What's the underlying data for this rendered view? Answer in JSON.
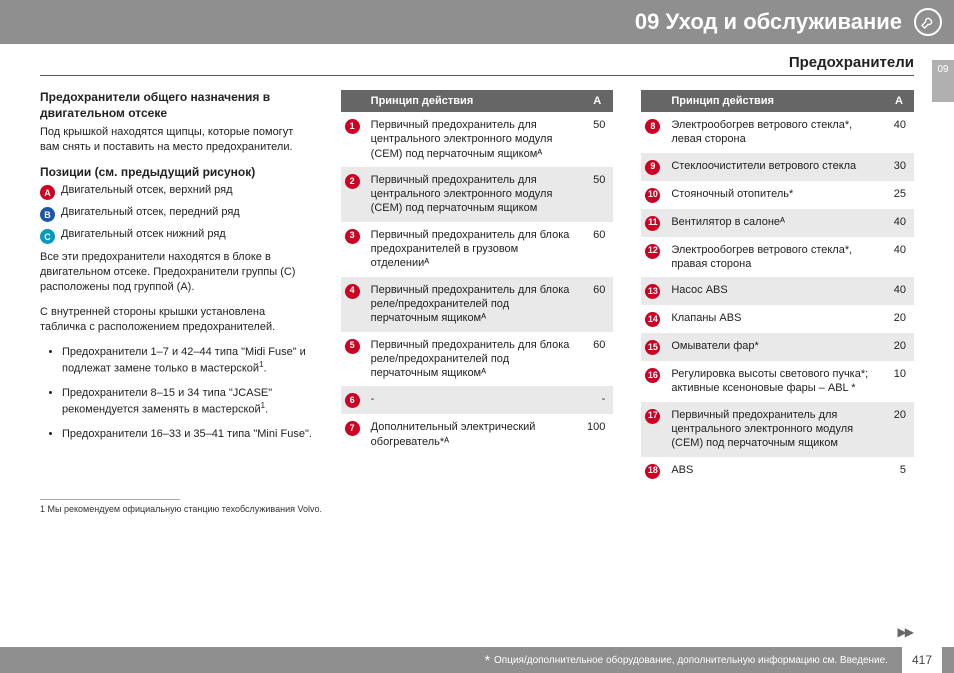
{
  "header_title": "09 Уход и обслуживание",
  "subheader": "Предохранители",
  "side_tab": "09",
  "col1": {
    "h1": "Предохранители общего назначения в двигательном отсеке",
    "p1": "Под крышкой находятся щипцы, которые помогут вам снять и поставить на место предохранители.",
    "h2": "Позиции (см. предыдущий рисунок)",
    "posA": "Двигательный отсек, верхний ряд",
    "posB": "Двигательный отсек, передний ряд",
    "posC": "Двигательный отсек нижний ряд",
    "p2": "Все эти предохранители находятся в блоке в двигательном отсеке. Предохранители группы (C) расположены под группой (A).",
    "p3": "С внутренней стороны крышки установлена табличка с расположением предохранителей.",
    "b1": "Предохранители 1–7 и 42–44 типа \"Midi Fuse\" и подлежат замене только в мастерской",
    "b2": "Предохранители 8–15 и 34 типа \"JCASE\" рекомендуется заменять в мастерской",
    "b3": "Предохранители 16–33 и 35–41 типа \"Mini Fuse\"."
  },
  "table_head1": "Принцип действия",
  "table_head2": "A",
  "t1": [
    {
      "n": "1",
      "d": "Первичный предохранитель для центрального электронного модуля (CEM) под перчаточным ящикомᴬ",
      "a": "50"
    },
    {
      "n": "2",
      "d": "Первичный предохранитель для центрального электронного модуля (CEM) под перчаточным ящиком",
      "a": "50"
    },
    {
      "n": "3",
      "d": "Первичный предохранитель для блока предохранителей в грузовом отделенииᴬ",
      "a": "60"
    },
    {
      "n": "4",
      "d": "Первичный предохранитель для блока реле/предохранителей под перчаточным ящикомᴬ",
      "a": "60"
    },
    {
      "n": "5",
      "d": "Первичный предохранитель для блока реле/предохранителей под перчаточным ящикомᴬ",
      "a": "60"
    },
    {
      "n": "6",
      "d": "-",
      "a": "-"
    },
    {
      "n": "7",
      "d": "Дополнительный электрический обогреватель*ᴬ",
      "a": "100"
    }
  ],
  "t2": [
    {
      "n": "8",
      "d": "Электрообогрев ветрового стекла*, левая сторона",
      "a": "40"
    },
    {
      "n": "9",
      "d": "Стеклоочистители ветрового стекла",
      "a": "30"
    },
    {
      "n": "10",
      "d": "Стояночный отопитель*",
      "a": "25"
    },
    {
      "n": "11",
      "d": "Вентилятор в салонеᴬ",
      "a": "40"
    },
    {
      "n": "12",
      "d": "Электрообогрев ветрового стекла*, правая сторона",
      "a": "40"
    },
    {
      "n": "13",
      "d": "Насос ABS",
      "a": "40"
    },
    {
      "n": "14",
      "d": "Клапаны ABS",
      "a": "20"
    },
    {
      "n": "15",
      "d": "Омыватели фар*",
      "a": "20"
    },
    {
      "n": "16",
      "d": "Регулировка высоты светового пучка*; активные ксеноновые фары – ABL *",
      "a": "10"
    },
    {
      "n": "17",
      "d": "Первичный предохранитель для центрального электронного модуля (CEM) под перчаточным ящиком",
      "a": "20"
    },
    {
      "n": "18",
      "d": "ABS",
      "a": "5"
    }
  ],
  "footnote": "1  Мы рекомендуем официальную станцию техобслуживания Volvo.",
  "footer_text": "Опция/дополнительное оборудование, дополнительную информацию см. Введение.",
  "page_number": "417"
}
